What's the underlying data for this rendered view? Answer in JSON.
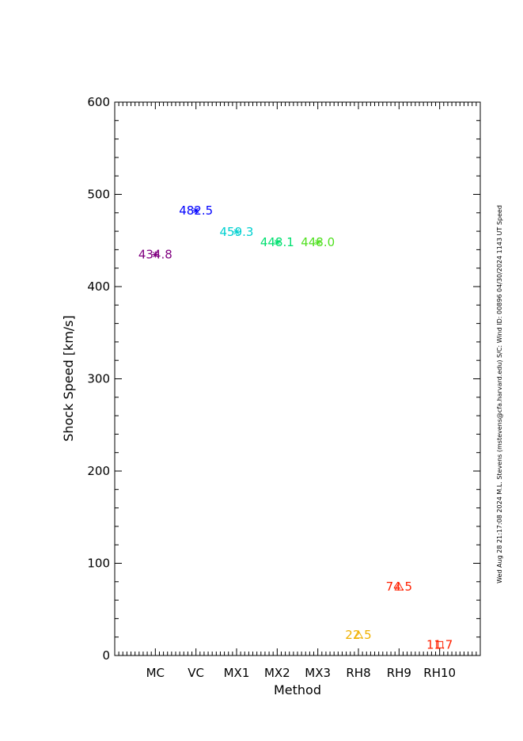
{
  "chart_data": {
    "type": "scatter",
    "xlabel": "Method",
    "ylabel": "Shock Speed [km/s]",
    "categories": [
      "MC",
      "VC",
      "MX1",
      "MX2",
      "MX3",
      "RH8",
      "RH9",
      "RH10"
    ],
    "ylim": [
      0,
      600
    ],
    "y_ticks": [
      "0",
      "100",
      "200",
      "300",
      "400",
      "500",
      "600"
    ],
    "grid": false,
    "legend": "none",
    "points": [
      {
        "category": "MC",
        "value": 434.8,
        "label": "434.8",
        "color": "#800080",
        "marker": "asterisk"
      },
      {
        "category": "VC",
        "value": 482.5,
        "label": "482.5",
        "color": "#0000ff",
        "marker": "asterisk"
      },
      {
        "category": "MX1",
        "value": 459.3,
        "label": "459.3",
        "color": "#00d0d0",
        "marker": "asterisk"
      },
      {
        "category": "MX2",
        "value": 448.1,
        "label": "448.1",
        "color": "#00e070",
        "marker": "asterisk"
      },
      {
        "category": "MX3",
        "value": 448.0,
        "label": "448.0",
        "color": "#50e020",
        "marker": "asterisk"
      },
      {
        "category": "RH8",
        "value": 22.5,
        "label": "22.5",
        "color": "#f0b000",
        "marker": "triangle"
      },
      {
        "category": "RH9",
        "value": 74.5,
        "label": "74.5",
        "color": "#ff2000",
        "marker": "triangle"
      },
      {
        "category": "RH10",
        "value": 11.7,
        "label": "11.7",
        "color": "#ff2000",
        "marker": "square"
      }
    ]
  },
  "side_note": "Wed Aug 28 21:17:08 2024  M.L. Stevens (mstevens@cfa.harvard.edu)  S/C: Wind ID: 00896 04/30/2024  1143 UT Speed"
}
